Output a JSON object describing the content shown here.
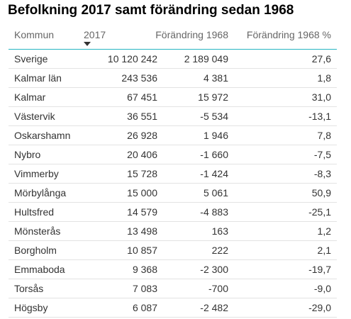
{
  "title": "Befolkning 2017 samt förändring sedan 1968",
  "table": {
    "columns": [
      "Kommun",
      "2017",
      "Förändring 1968",
      "Förändring 1968 %"
    ],
    "sort": {
      "column": "2017",
      "direction": "descending",
      "icon": "sort-descending-icon"
    },
    "accent_color": "#27b5c3",
    "rows": [
      {
        "kommun": "Sverige",
        "pop2017": "10 120 242",
        "change": "2 189 049",
        "pct": "27,6"
      },
      {
        "kommun": "Kalmar län",
        "pop2017": "243 536",
        "change": "4 381",
        "pct": "1,8"
      },
      {
        "kommun": "Kalmar",
        "pop2017": "67 451",
        "change": "15 972",
        "pct": "31,0"
      },
      {
        "kommun": "Västervik",
        "pop2017": "36 551",
        "change": "-5 534",
        "pct": "-13,1"
      },
      {
        "kommun": "Oskarshamn",
        "pop2017": "26 928",
        "change": "1 946",
        "pct": "7,8"
      },
      {
        "kommun": "Nybro",
        "pop2017": "20 406",
        "change": "-1 660",
        "pct": "-7,5"
      },
      {
        "kommun": "Vimmerby",
        "pop2017": "15 728",
        "change": "-1 424",
        "pct": "-8,3"
      },
      {
        "kommun": "Mörbylånga",
        "pop2017": "15 000",
        "change": "5 061",
        "pct": "50,9"
      },
      {
        "kommun": "Hultsfred",
        "pop2017": "14 579",
        "change": "-4 883",
        "pct": "-25,1"
      },
      {
        "kommun": "Mönsterås",
        "pop2017": "13 498",
        "change": "163",
        "pct": "1,2"
      },
      {
        "kommun": "Borgholm",
        "pop2017": "10 857",
        "change": "222",
        "pct": "2,1"
      },
      {
        "kommun": "Emmaboda",
        "pop2017": "9 368",
        "change": "-2 300",
        "pct": "-19,7"
      },
      {
        "kommun": "Torsås",
        "pop2017": "7 083",
        "change": "-700",
        "pct": "-9,0"
      },
      {
        "kommun": "Högsby",
        "pop2017": "6 087",
        "change": "-2 482",
        "pct": "-29,0"
      }
    ]
  }
}
